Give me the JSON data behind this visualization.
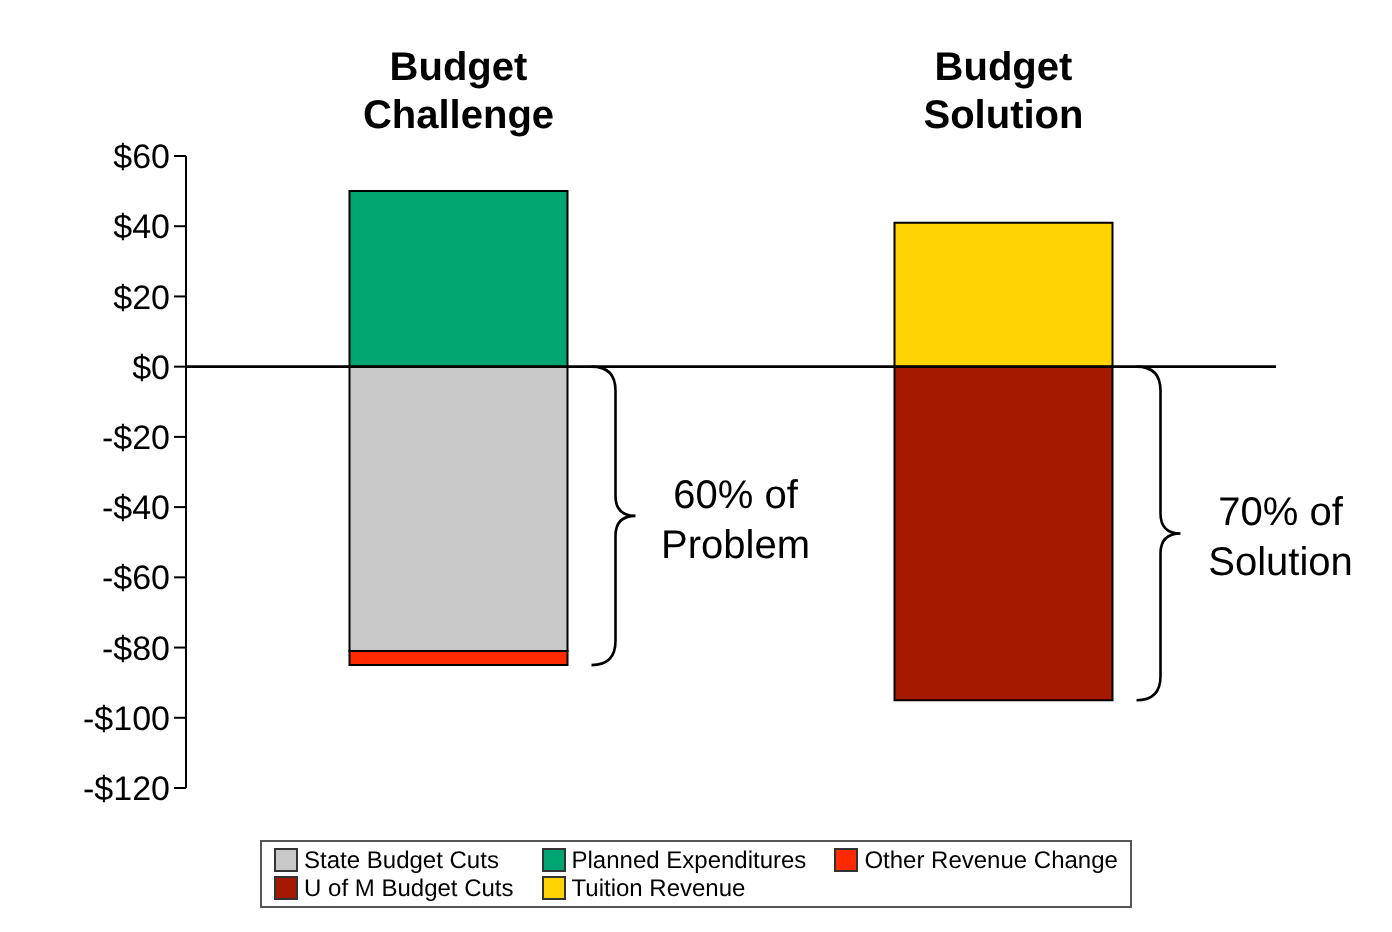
{
  "chart_data": {
    "type": "bar",
    "stacked": true,
    "categories": [
      "Budget Challenge",
      "Budget Solution"
    ],
    "series": [
      {
        "name": "State Budget Cuts",
        "color": "#c8c8c8",
        "values": [
          -81,
          null
        ]
      },
      {
        "name": "Planned Expenditures",
        "color": "#00a672",
        "values": [
          50,
          null
        ]
      },
      {
        "name": "Other Revenue Change",
        "color": "#ff2a00",
        "values": [
          -4,
          null
        ]
      },
      {
        "name": "U of M Budget Cuts",
        "color": "#a51900",
        "values": [
          null,
          -95
        ]
      },
      {
        "name": "Tuition Revenue",
        "color": "#ffd300",
        "values": [
          null,
          41
        ]
      }
    ],
    "ylim": [
      -120,
      60
    ],
    "yticks": [
      {
        "value": 60,
        "label": "$60"
      },
      {
        "value": 40,
        "label": "$40"
      },
      {
        "value": 20,
        "label": "$20"
      },
      {
        "value": 0,
        "label": "$0"
      },
      {
        "value": -20,
        "label": "-$20"
      },
      {
        "value": -40,
        "label": "-$40"
      },
      {
        "value": -60,
        "label": "-$60"
      },
      {
        "value": -80,
        "label": "-$80"
      },
      {
        "value": -100,
        "label": "-$100"
      },
      {
        "value": -120,
        "label": "-$120"
      }
    ],
    "ref_lines": [
      {
        "axis": "y",
        "value": 0,
        "color": "#000000"
      }
    ],
    "annotations": [
      "60% of Problem",
      "70% of Solution"
    ],
    "legend": "bottom"
  }
}
